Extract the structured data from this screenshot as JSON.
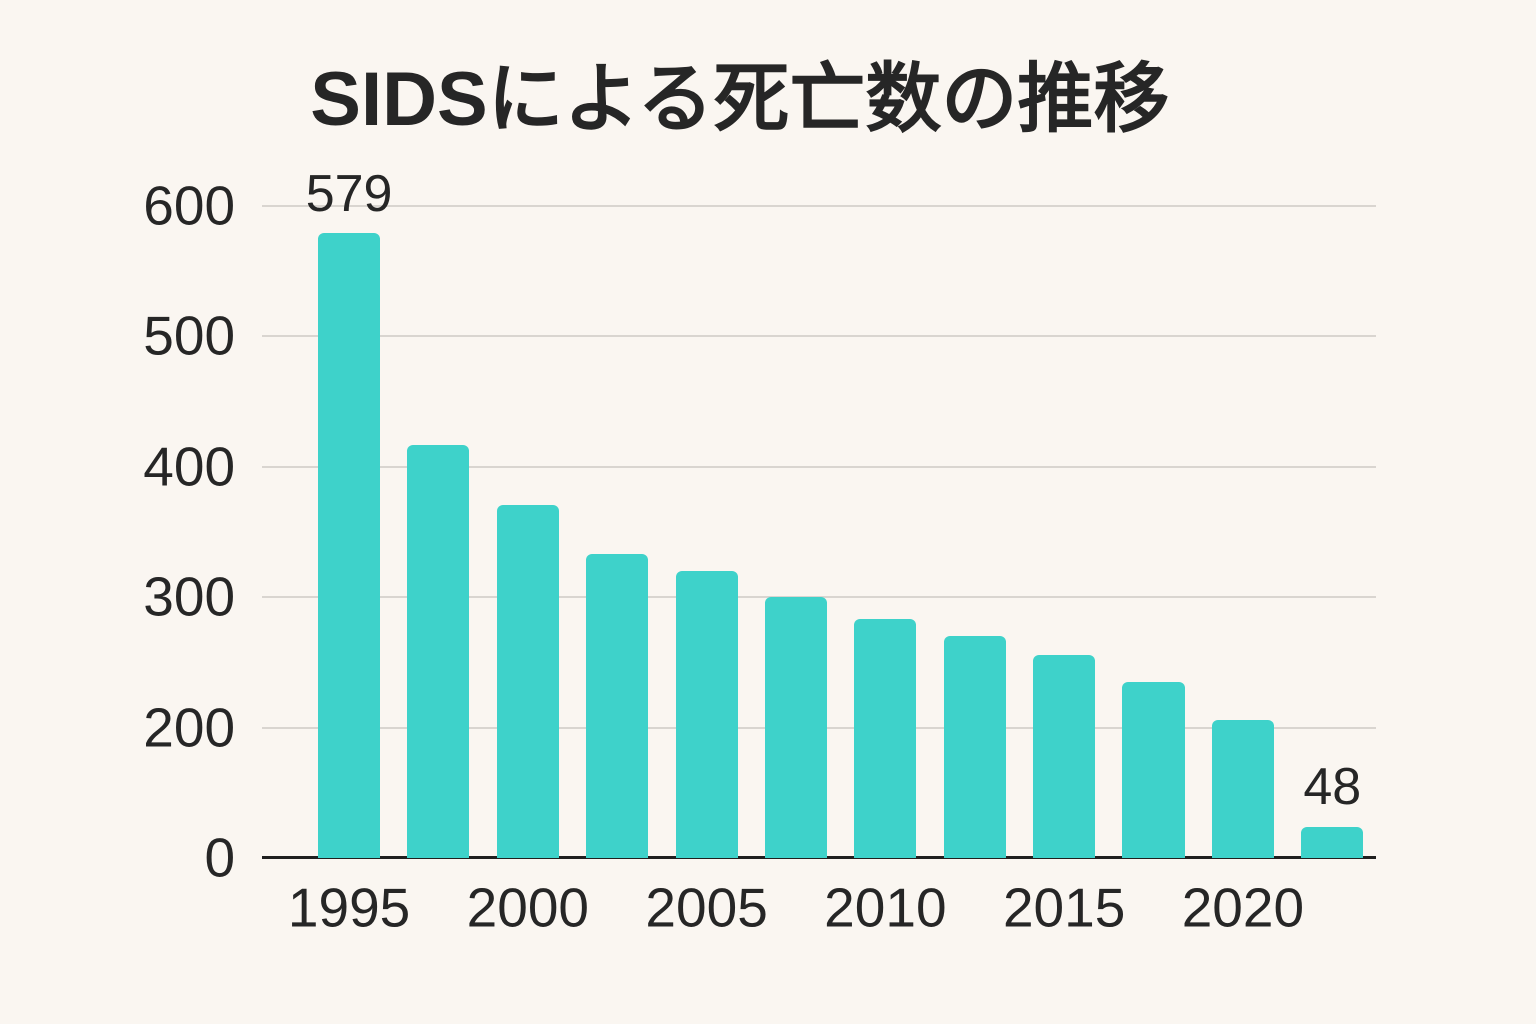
{
  "chart_data": {
    "type": "bar",
    "title": "SIDSによる死亡数の推移",
    "categories": [
      "1995",
      "",
      "2000",
      "",
      "2005",
      "",
      "2010",
      "",
      "2015",
      "",
      "2020",
      ""
    ],
    "values": [
      579,
      417,
      371,
      333,
      320,
      300,
      283,
      270,
      256,
      235,
      206,
      48
    ],
    "bar_value_labels": [
      "579",
      "",
      "",
      "",
      "",
      "",
      "",
      "",
      "",
      "",
      "",
      "48"
    ],
    "y_ticks": [
      "600",
      "500",
      "400",
      "300",
      "200",
      "0"
    ],
    "x_tick_labels": [
      "1995",
      "2000",
      "2005",
      "2010",
      "2015",
      "2020"
    ],
    "x_tick_bar_indices": [
      0,
      2,
      4,
      6,
      8,
      10
    ],
    "xlabel": "",
    "ylabel": "",
    "grid": true,
    "legend": false,
    "axis_note": "y tick labels 600,500,400,300,200,0 are equally spaced (no 100 label shown)",
    "colors": {
      "bar": "#3ed2ca",
      "background": "#faf6f1",
      "gridline": "#d9d5d0",
      "axis_line": "#1f1f1f",
      "text": "#262626"
    }
  }
}
